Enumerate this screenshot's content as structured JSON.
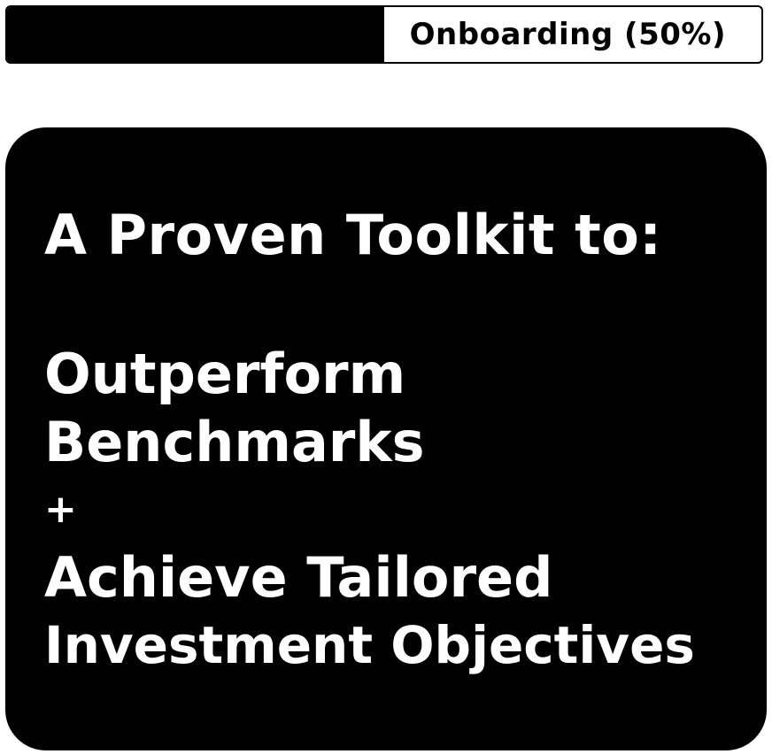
{
  "progress": {
    "label": "Onboarding (50%)",
    "percent": 50
  },
  "hero": {
    "heading": "A Proven Toolkit to:",
    "line1": "Outperform",
    "line2": "Benchmarks",
    "plus": "+",
    "line3": "Achieve Tailored",
    "line4": "Investment Objectives"
  },
  "colors": {
    "background": "#ffffff",
    "card": "#000000",
    "text_on_card": "#ffffff",
    "progress_fill": "#000000"
  }
}
